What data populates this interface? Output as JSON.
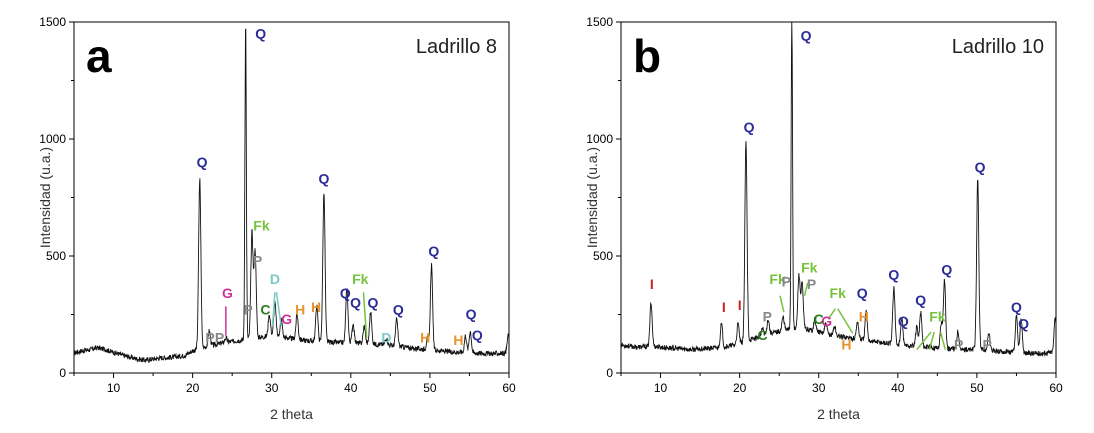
{
  "chart_data": [
    {
      "type": "line",
      "panel_letter": "a",
      "sample_label": "Ladrillo 8",
      "xlabel": "2 theta",
      "ylabel": "Intensidad (u.a.)",
      "xlim": [
        5,
        60
      ],
      "ylim": [
        0,
        1500
      ],
      "x_ticks": [
        10,
        20,
        30,
        40,
        50,
        60
      ],
      "y_ticks": [
        0,
        500,
        1000,
        1500
      ],
      "baseline": [
        [
          5,
          85
        ],
        [
          6,
          95
        ],
        [
          7,
          100
        ],
        [
          8,
          108
        ],
        [
          9,
          100
        ],
        [
          10,
          88
        ],
        [
          11,
          78
        ],
        [
          12,
          68
        ],
        [
          13,
          60
        ],
        [
          14,
          55
        ],
        [
          15,
          60
        ],
        [
          16,
          65
        ],
        [
          17,
          66
        ],
        [
          18,
          70
        ],
        [
          19,
          75
        ],
        [
          20,
          95
        ],
        [
          22,
          115
        ],
        [
          24,
          130
        ],
        [
          26,
          140
        ],
        [
          28,
          150
        ],
        [
          30,
          160
        ],
        [
          32,
          150
        ],
        [
          34,
          140
        ],
        [
          36,
          135
        ],
        [
          38,
          130
        ],
        [
          40,
          130
        ],
        [
          42,
          125
        ],
        [
          44,
          122
        ],
        [
          46,
          115
        ],
        [
          48,
          105
        ],
        [
          50,
          100
        ],
        [
          52,
          92
        ],
        [
          54,
          88
        ],
        [
          56,
          85
        ],
        [
          58,
          83
        ],
        [
          59.8,
          85
        ]
      ],
      "peaks": [
        [
          20.9,
          830
        ],
        [
          22.1,
          180
        ],
        [
          24.2,
          150
        ],
        [
          26.7,
          1500
        ],
        [
          27.5,
          600
        ],
        [
          27.9,
          520
        ],
        [
          29.7,
          250
        ],
        [
          30.4,
          300
        ],
        [
          31.2,
          230
        ],
        [
          33.2,
          250
        ],
        [
          35.7,
          290
        ],
        [
          36.6,
          770
        ],
        [
          39.5,
          360
        ],
        [
          40.3,
          210
        ],
        [
          41.7,
          200
        ],
        [
          42.5,
          260
        ],
        [
          44.5,
          150
        ],
        [
          45.8,
          230
        ],
        [
          49.7,
          150
        ],
        [
          50.2,
          460
        ],
        [
          54.5,
          160
        ],
        [
          55.1,
          180
        ],
        [
          59.9,
          160
        ]
      ],
      "annotations": [
        {
          "text": "Q",
          "x": 21.2,
          "y": 880,
          "color": "#2a2a99"
        },
        {
          "text": "Q",
          "x": 28.6,
          "y": 1430,
          "color": "#2a2a99"
        },
        {
          "text": "Q",
          "x": 36.6,
          "y": 810,
          "color": "#2a2a99"
        },
        {
          "text": "Q",
          "x": 39.3,
          "y": 320,
          "color": "#2a2a99"
        },
        {
          "text": "Q",
          "x": 40.6,
          "y": 280,
          "color": "#2a2a99"
        },
        {
          "text": "Q",
          "x": 42.8,
          "y": 280,
          "color": "#2a2a99"
        },
        {
          "text": "Q",
          "x": 46.0,
          "y": 250,
          "color": "#2a2a99"
        },
        {
          "text": "Q",
          "x": 50.5,
          "y": 500,
          "color": "#2a2a99"
        },
        {
          "text": "Q",
          "x": 55.2,
          "y": 230,
          "color": "#2a2a99"
        },
        {
          "text": "Q",
          "x": 56.0,
          "y": 140,
          "color": "#2a2a99"
        },
        {
          "text": "Fk",
          "x": 28.7,
          "y": 610,
          "color": "#77c23b"
        },
        {
          "text": "Fk",
          "x": 41.2,
          "y": 380,
          "color": "#77c23b"
        },
        {
          "text": "P",
          "x": 28.2,
          "y": 460,
          "color": "#888888"
        },
        {
          "text": "P",
          "x": 27.0,
          "y": 250,
          "color": "#888888"
        },
        {
          "text": "P",
          "x": 22.2,
          "y": 130,
          "color": "#888888"
        },
        {
          "text": "P",
          "x": 23.4,
          "y": 130,
          "color": "#888888"
        },
        {
          "text": "G",
          "x": 24.4,
          "y": 320,
          "color": "#cc3399"
        },
        {
          "text": "G",
          "x": 31.9,
          "y": 210,
          "color": "#cc3399"
        },
        {
          "text": "D",
          "x": 30.4,
          "y": 380,
          "color": "#79c9c5"
        },
        {
          "text": "D",
          "x": 44.5,
          "y": 130,
          "color": "#79c9c5"
        },
        {
          "text": "C",
          "x": 29.2,
          "y": 250,
          "color": "#2e7d1e"
        },
        {
          "text": "H",
          "x": 33.6,
          "y": 250,
          "color": "#e8922a"
        },
        {
          "text": "H",
          "x": 35.6,
          "y": 260,
          "color": "#e8922a"
        },
        {
          "text": "H",
          "x": 49.4,
          "y": 130,
          "color": "#e8922a"
        },
        {
          "text": "H",
          "x": 53.6,
          "y": 120,
          "color": "#e8922a"
        }
      ],
      "pointer_lines": [
        {
          "x1": 24.2,
          "y1": 285,
          "x2": 24.2,
          "y2": 160,
          "color": "#cc3399"
        },
        {
          "x1": 30.4,
          "y1": 345,
          "x2": 30.1,
          "y2": 200,
          "color": "#79c9c5"
        },
        {
          "x1": 30.6,
          "y1": 345,
          "x2": 31.2,
          "y2": 200,
          "color": "#79c9c5"
        },
        {
          "x1": 41.6,
          "y1": 345,
          "x2": 42.0,
          "y2": 150,
          "color": "#77c23b"
        }
      ]
    },
    {
      "type": "line",
      "panel_letter": "b",
      "sample_label": "Ladrillo 10",
      "xlabel": "2 theta",
      "ylabel": "Intensidad (u.a.)",
      "xlim": [
        5,
        60
      ],
      "ylim": [
        0,
        1500
      ],
      "x_ticks": [
        10,
        20,
        30,
        40,
        50,
        60
      ],
      "y_ticks": [
        0,
        500,
        1000,
        1500
      ],
      "baseline": [
        [
          5,
          120
        ],
        [
          6,
          115
        ],
        [
          7,
          110
        ],
        [
          8,
          112
        ],
        [
          9,
          115
        ],
        [
          10,
          110
        ],
        [
          12,
          105
        ],
        [
          14,
          100
        ],
        [
          16,
          105
        ],
        [
          18,
          110
        ],
        [
          20,
          125
        ],
        [
          22,
          150
        ],
        [
          24,
          170
        ],
        [
          26,
          185
        ],
        [
          28,
          190
        ],
        [
          30,
          175
        ],
        [
          32,
          160
        ],
        [
          34,
          150
        ],
        [
          36,
          140
        ],
        [
          38,
          130
        ],
        [
          40,
          120
        ],
        [
          42,
          115
        ],
        [
          44,
          110
        ],
        [
          46,
          105
        ],
        [
          48,
          100
        ],
        [
          50,
          100
        ],
        [
          52,
          95
        ],
        [
          54,
          90
        ],
        [
          56,
          85
        ],
        [
          58,
          83
        ],
        [
          59.8,
          90
        ]
      ],
      "peaks": [
        [
          8.8,
          300
        ],
        [
          17.7,
          210
        ],
        [
          19.8,
          210
        ],
        [
          20.8,
          980
        ],
        [
          22.9,
          190
        ],
        [
          23.6,
          230
        ],
        [
          25.5,
          240
        ],
        [
          26.6,
          1500
        ],
        [
          27.5,
          420
        ],
        [
          27.9,
          380
        ],
        [
          29.5,
          230
        ],
        [
          30.9,
          210
        ],
        [
          32.0,
          200
        ],
        [
          34.9,
          220
        ],
        [
          36.0,
          260
        ],
        [
          39.5,
          370
        ],
        [
          40.5,
          230
        ],
        [
          42.4,
          200
        ],
        [
          42.9,
          260
        ],
        [
          45.5,
          210
        ],
        [
          45.9,
          400
        ],
        [
          47.6,
          180
        ],
        [
          50.1,
          820
        ],
        [
          51.5,
          170
        ],
        [
          55.0,
          240
        ],
        [
          55.6,
          230
        ],
        [
          59.9,
          240
        ]
      ],
      "annotations": [
        {
          "text": "I",
          "x": 8.9,
          "y": 360,
          "color": "#cc2222"
        },
        {
          "text": "I",
          "x": 18.0,
          "y": 260,
          "color": "#cc2222"
        },
        {
          "text": "I",
          "x": 20.0,
          "y": 270,
          "color": "#cc2222"
        },
        {
          "text": "Q",
          "x": 21.2,
          "y": 1030,
          "color": "#2a2a99"
        },
        {
          "text": "Q",
          "x": 28.4,
          "y": 1420,
          "color": "#2a2a99"
        },
        {
          "text": "Q",
          "x": 35.5,
          "y": 320,
          "color": "#2a2a99"
        },
        {
          "text": "Q",
          "x": 39.5,
          "y": 400,
          "color": "#2a2a99"
        },
        {
          "text": "Q",
          "x": 40.7,
          "y": 200,
          "color": "#2a2a99"
        },
        {
          "text": "Q",
          "x": 42.9,
          "y": 290,
          "color": "#2a2a99"
        },
        {
          "text": "Q",
          "x": 46.2,
          "y": 420,
          "color": "#2a2a99"
        },
        {
          "text": "Q",
          "x": 50.4,
          "y": 860,
          "color": "#2a2a99"
        },
        {
          "text": "Q",
          "x": 55.0,
          "y": 260,
          "color": "#2a2a99"
        },
        {
          "text": "Q",
          "x": 55.9,
          "y": 190,
          "color": "#2a2a99"
        },
        {
          "text": "Fk",
          "x": 24.8,
          "y": 380,
          "color": "#77c23b"
        },
        {
          "text": "Fk",
          "x": 28.8,
          "y": 430,
          "color": "#77c23b"
        },
        {
          "text": "Fk",
          "x": 32.4,
          "y": 320,
          "color": "#77c23b"
        },
        {
          "text": "Fk",
          "x": 45.0,
          "y": 220,
          "color": "#77c23b"
        },
        {
          "text": "P",
          "x": 25.9,
          "y": 370,
          "color": "#888888"
        },
        {
          "text": "P",
          "x": 29.1,
          "y": 360,
          "color": "#888888"
        },
        {
          "text": "P",
          "x": 23.5,
          "y": 220,
          "color": "#888888"
        },
        {
          "text": "P",
          "x": 47.7,
          "y": 100,
          "color": "#888888"
        },
        {
          "text": "P",
          "x": 51.3,
          "y": 100,
          "color": "#888888"
        },
        {
          "text": "G",
          "x": 31.0,
          "y": 200,
          "color": "#cc3399"
        },
        {
          "text": "C",
          "x": 22.9,
          "y": 140,
          "color": "#2e7d1e"
        },
        {
          "text": "C",
          "x": 30.0,
          "y": 210,
          "color": "#2e7d1e"
        },
        {
          "text": "H",
          "x": 33.5,
          "y": 100,
          "color": "#e8922a"
        },
        {
          "text": "H",
          "x": 35.7,
          "y": 220,
          "color": "#e8922a"
        }
      ],
      "pointer_lines": [
        {
          "x1": 25.1,
          "y1": 330,
          "x2": 25.6,
          "y2": 260,
          "color": "#77c23b"
        },
        {
          "x1": 28.6,
          "y1": 385,
          "x2": 28.2,
          "y2": 330,
          "color": "#77c23b"
        },
        {
          "x1": 32.1,
          "y1": 275,
          "x2": 31.2,
          "y2": 230,
          "color": "#77c23b"
        },
        {
          "x1": 32.4,
          "y1": 275,
          "x2": 34.3,
          "y2": 170,
          "color": "#77c23b"
        },
        {
          "x1": 44.2,
          "y1": 175,
          "x2": 42.4,
          "y2": 100,
          "color": "#77c23b"
        },
        {
          "x1": 44.6,
          "y1": 175,
          "x2": 44.0,
          "y2": 100,
          "color": "#77c23b"
        },
        {
          "x1": 45.4,
          "y1": 175,
          "x2": 46.0,
          "y2": 100,
          "color": "#77c23b"
        }
      ]
    }
  ]
}
